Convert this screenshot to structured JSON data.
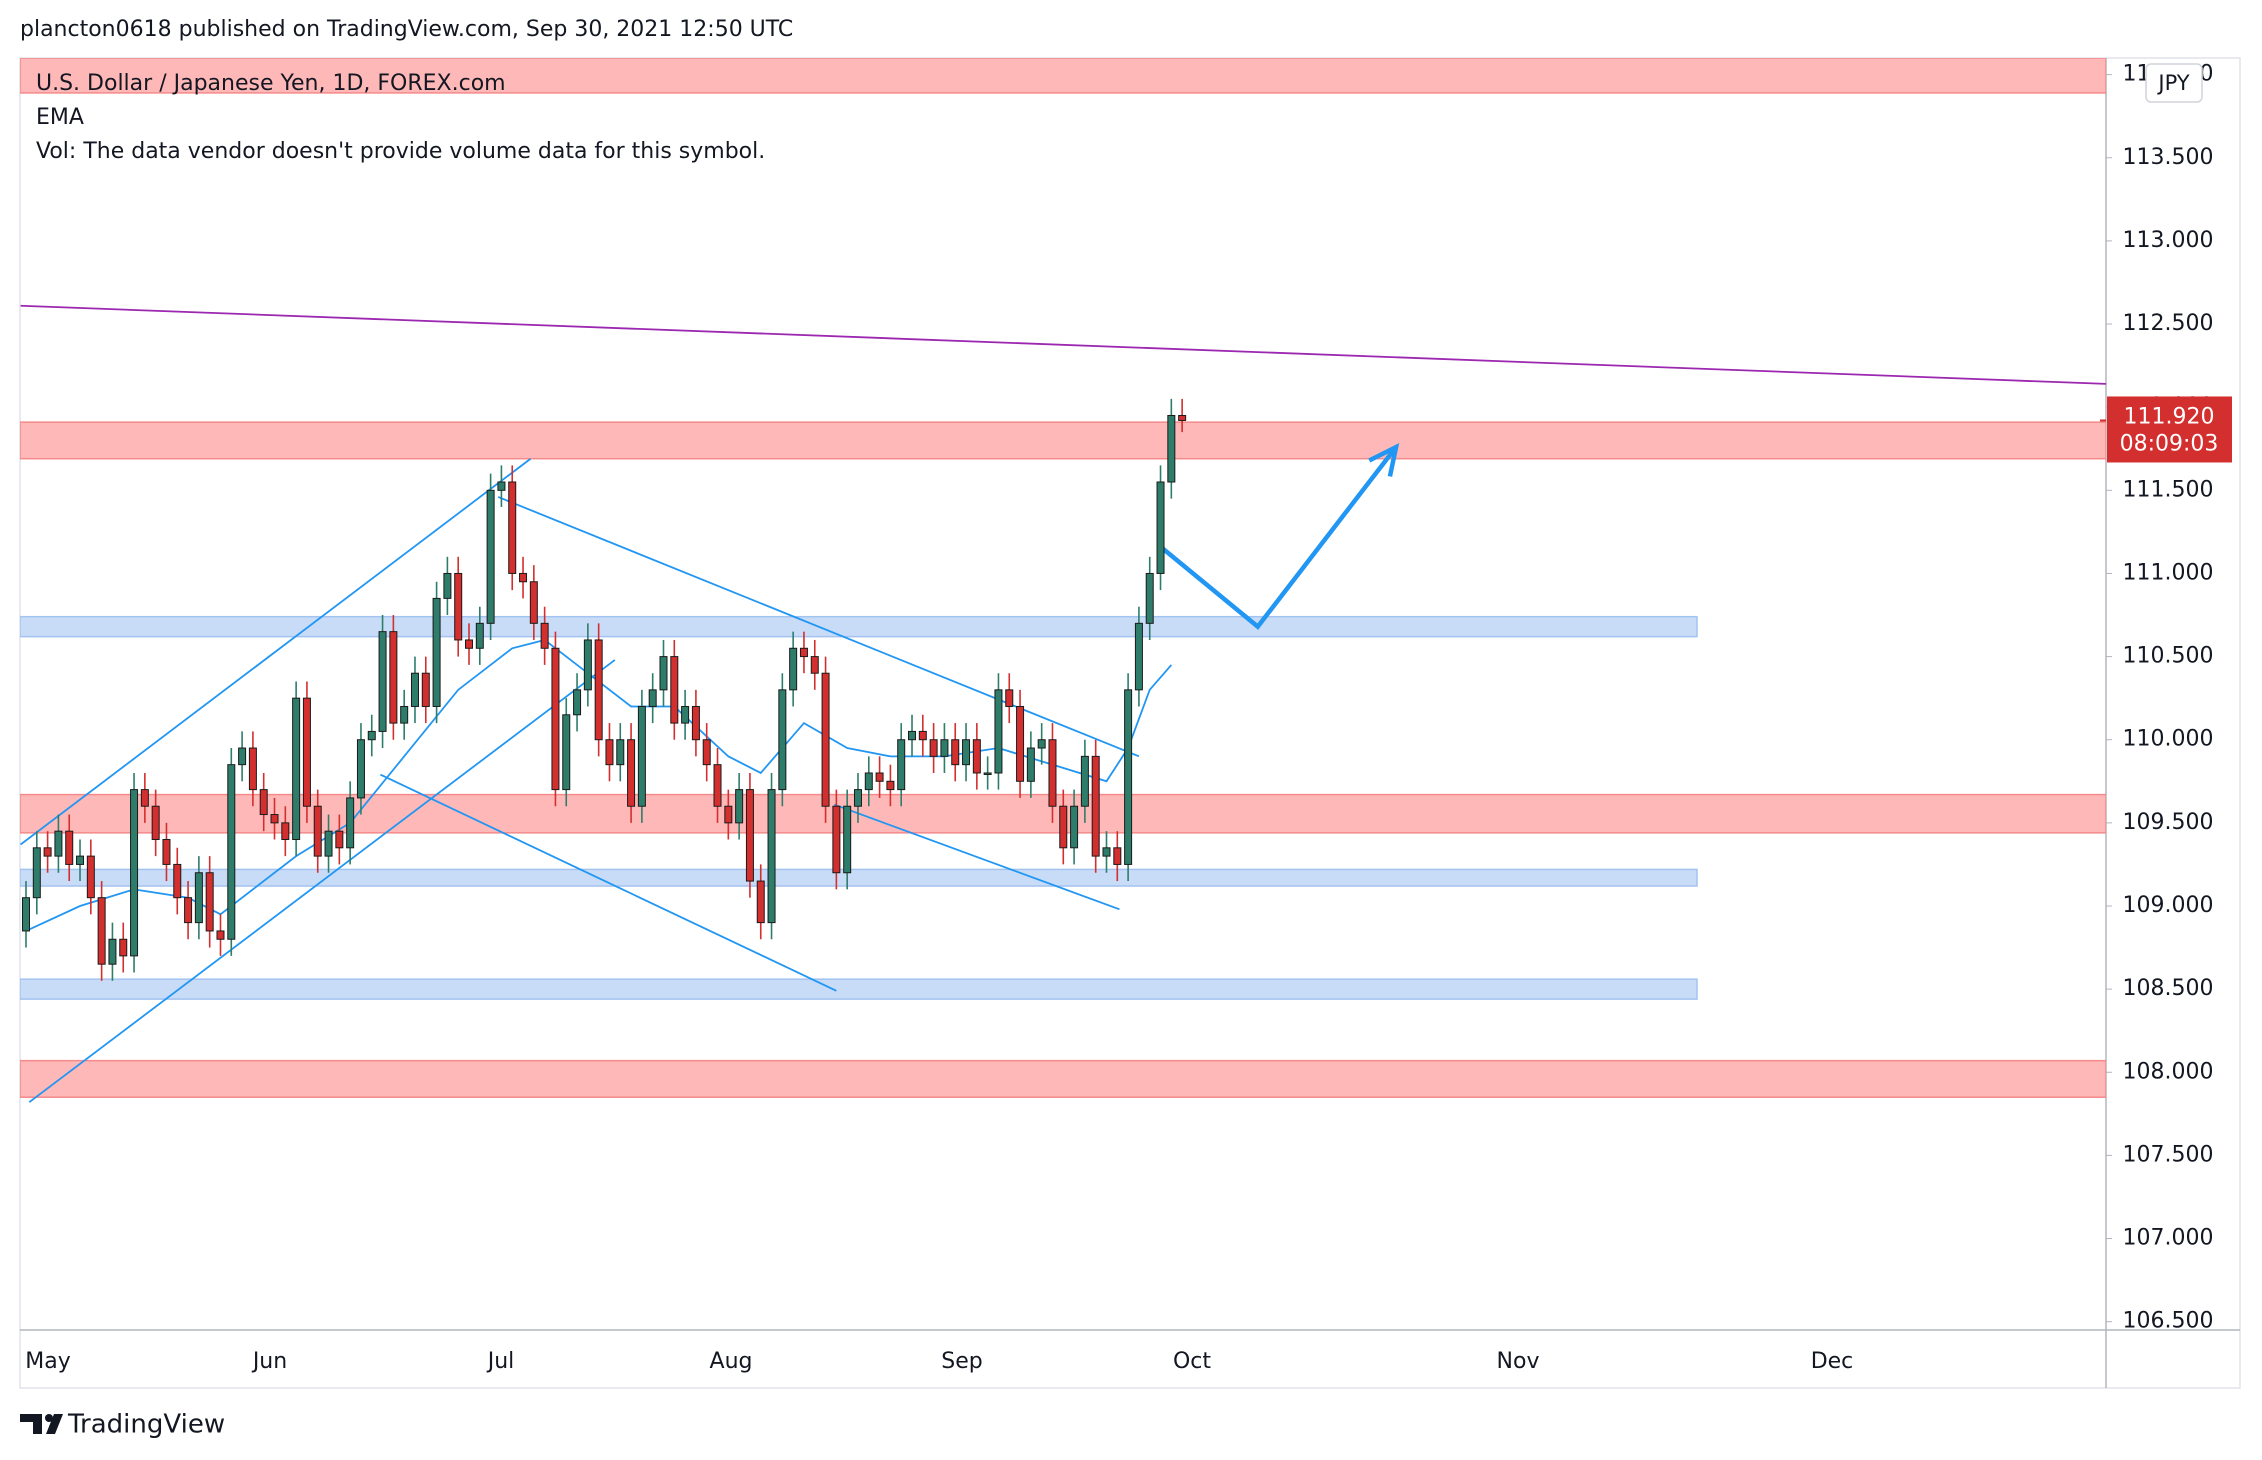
{
  "header": "plancton0618 published on TradingView.com, Sep 30, 2021 12:50 UTC",
  "footer": "TradingView",
  "chart_data": {
    "type": "candlestick",
    "title": "U.S. Dollar / Japanese Yen, 1D, FOREX.com",
    "volume_note": "Vol: The data vendor doesn't provide volume data for this symbol.",
    "currency": "JPY",
    "up_color": "#2e7d6b",
    "down_color": "#d32f2f",
    "grid": false,
    "ylim": [
      106.45,
      114.1
    ],
    "yticks": [
      {
        "value": 106.5,
        "label": "106.500"
      },
      {
        "value": 107,
        "label": "107.000"
      },
      {
        "value": 107.5,
        "label": "107.500"
      },
      {
        "value": 108,
        "label": "108.000"
      },
      {
        "value": 108.5,
        "label": "108.500"
      },
      {
        "value": 109,
        "label": "109.000"
      },
      {
        "value": 109.5,
        "label": "109.500"
      },
      {
        "value": 110,
        "label": "110.000"
      },
      {
        "value": 110.5,
        "label": "110.500"
      },
      {
        "value": 111,
        "label": "111.000"
      },
      {
        "value": 111.5,
        "label": "111.500"
      },
      {
        "value": 112,
        "label": "112.000"
      },
      {
        "value": 112.5,
        "label": "112.500"
      },
      {
        "value": 113,
        "label": "113.000"
      },
      {
        "value": 113.5,
        "label": "113.500"
      },
      {
        "value": 114,
        "label": "114.000"
      }
    ],
    "xticks": [
      "May",
      "Jun",
      "Jul",
      "Aug",
      "Sep",
      "Oct",
      "Nov",
      "Dec"
    ],
    "current_price": {
      "value": 111.92,
      "label": "111.920",
      "countdown": "08:09:03",
      "color": "#d32f2f"
    },
    "open": [
      108.85,
      109.05,
      109.35,
      109.3,
      109.45,
      109.25,
      109.3,
      109.05,
      108.65,
      108.8,
      108.7,
      109.7,
      109.6,
      109.4,
      109.25,
      109.05,
      108.9,
      109.2,
      108.85,
      108.8,
      109.85,
      109.95,
      109.7,
      109.55,
      109.5,
      109.4,
      110.25,
      109.6,
      109.3,
      109.45,
      109.35,
      109.65,
      110.0,
      110.05,
      110.65,
      110.1,
      110.2,
      110.4,
      110.2,
      110.85,
      111.0,
      110.6,
      110.55,
      110.7,
      111.5,
      111.55,
      111.0,
      110.95,
      110.7,
      110.55,
      109.7,
      110.15,
      110.3,
      110.6,
      110.0,
      109.85,
      110.0,
      109.6,
      110.2,
      110.3,
      110.5,
      110.1,
      110.2,
      110.0,
      109.85,
      109.6,
      109.5,
      109.7,
      109.15,
      108.9,
      109.7,
      110.3,
      110.55,
      110.5,
      110.4,
      109.6,
      109.2,
      109.6,
      109.7,
      109.8,
      109.75,
      109.7,
      110.0,
      110.05,
      110.0,
      109.9,
      110.0,
      109.85,
      110.0,
      109.8,
      109.8,
      110.3,
      110.2,
      109.75,
      109.95,
      110.0,
      109.6,
      109.35,
      109.6,
      109.9,
      109.3,
      109.35,
      109.25,
      110.3,
      110.7,
      111.0,
      111.55,
      111.95
    ],
    "high": [
      109.15,
      109.45,
      109.45,
      109.55,
      109.55,
      109.4,
      109.4,
      109.15,
      108.9,
      108.9,
      109.8,
      109.8,
      109.7,
      109.5,
      109.35,
      109.15,
      109.3,
      109.3,
      108.95,
      109.95,
      110.05,
      110.05,
      109.8,
      109.65,
      109.6,
      110.35,
      110.35,
      109.7,
      109.55,
      109.55,
      109.75,
      110.1,
      110.15,
      110.75,
      110.75,
      110.3,
      110.5,
      110.5,
      110.95,
      111.1,
      111.1,
      110.7,
      110.8,
      111.6,
      111.65,
      111.65,
      111.1,
      111.05,
      110.8,
      110.65,
      110.25,
      110.4,
      110.7,
      110.7,
      110.1,
      110.1,
      110.1,
      110.3,
      110.4,
      110.6,
      110.6,
      110.3,
      110.3,
      110.1,
      109.95,
      109.7,
      109.8,
      109.8,
      109.25,
      109.8,
      110.4,
      110.65,
      110.65,
      110.6,
      110.5,
      109.7,
      109.7,
      109.8,
      109.9,
      109.9,
      109.85,
      110.1,
      110.15,
      110.15,
      110.1,
      110.1,
      110.1,
      110.1,
      110.1,
      109.9,
      110.4,
      110.4,
      110.3,
      110.05,
      110.1,
      110.1,
      109.7,
      109.7,
      110.0,
      110.0,
      109.45,
      109.45,
      110.4,
      110.8,
      111.1,
      111.65,
      112.05,
      112.05
    ],
    "low": [
      108.75,
      108.95,
      109.2,
      109.2,
      109.15,
      109.15,
      108.95,
      108.55,
      108.55,
      108.6,
      108.6,
      109.5,
      109.3,
      109.15,
      108.95,
      108.8,
      108.8,
      108.75,
      108.7,
      108.7,
      109.75,
      109.6,
      109.45,
      109.4,
      109.3,
      109.3,
      109.5,
      109.2,
      109.2,
      109.25,
      109.25,
      109.55,
      109.9,
      109.95,
      110.0,
      110.0,
      110.1,
      110.1,
      110.1,
      110.75,
      110.5,
      110.45,
      110.45,
      110.6,
      111.4,
      110.9,
      110.85,
      110.6,
      110.45,
      109.6,
      109.6,
      110.05,
      110.2,
      109.9,
      109.75,
      109.75,
      109.5,
      109.5,
      110.1,
      110.2,
      110.0,
      110.0,
      109.9,
      109.75,
      109.5,
      109.4,
      109.4,
      109.05,
      108.8,
      108.8,
      109.6,
      110.2,
      110.4,
      110.3,
      109.5,
      109.1,
      109.1,
      109.5,
      109.6,
      109.65,
      109.6,
      109.6,
      109.9,
      109.9,
      109.8,
      109.8,
      109.75,
      109.75,
      109.7,
      109.7,
      109.7,
      110.1,
      109.65,
      109.65,
      109.85,
      109.5,
      109.25,
      109.25,
      109.5,
      109.2,
      109.2,
      109.15,
      109.15,
      110.2,
      110.6,
      110.9,
      111.45,
      111.85
    ],
    "close": [
      109.05,
      109.35,
      109.3,
      109.45,
      109.25,
      109.3,
      109.05,
      108.65,
      108.8,
      108.7,
      109.7,
      109.6,
      109.4,
      109.25,
      109.05,
      108.9,
      109.2,
      108.85,
      108.8,
      109.85,
      109.95,
      109.7,
      109.55,
      109.5,
      109.4,
      110.25,
      109.6,
      109.3,
      109.45,
      109.35,
      109.65,
      110.0,
      110.05,
      110.65,
      110.1,
      110.2,
      110.4,
      110.2,
      110.85,
      111.0,
      110.6,
      110.55,
      110.7,
      111.5,
      111.55,
      111.0,
      110.95,
      110.7,
      110.55,
      109.7,
      110.15,
      110.3,
      110.6,
      110.0,
      109.85,
      110.0,
      109.6,
      110.2,
      110.3,
      110.5,
      110.1,
      110.2,
      110.0,
      109.85,
      109.6,
      109.5,
      109.7,
      109.15,
      108.9,
      109.7,
      110.3,
      110.55,
      110.5,
      110.4,
      109.6,
      109.2,
      109.6,
      109.7,
      109.8,
      109.75,
      109.7,
      110.0,
      110.05,
      110.0,
      109.9,
      110.0,
      109.85,
      110.0,
      109.8,
      109.8,
      110.3,
      110.2,
      109.75,
      109.95,
      110.0,
      109.6,
      109.35,
      109.6,
      109.9,
      109.3,
      109.35,
      109.25,
      110.3,
      110.7,
      111.0,
      111.55,
      111.95,
      111.92
    ],
    "ema": {
      "name": "EMA",
      "color": "#2196f3",
      "x": [
        0,
        5,
        10,
        15,
        18,
        25,
        30,
        35,
        40,
        45,
        48,
        52,
        56,
        60,
        65,
        68,
        72,
        76,
        80,
        85,
        90,
        95,
        100,
        102,
        104,
        106
      ],
      "values": [
        108.85,
        109.0,
        109.1,
        109.05,
        108.95,
        109.3,
        109.5,
        109.9,
        110.3,
        110.55,
        110.6,
        110.4,
        110.2,
        110.2,
        109.9,
        109.8,
        110.1,
        109.95,
        109.9,
        109.9,
        109.95,
        109.85,
        109.75,
        109.95,
        110.3,
        110.45
      ]
    },
    "zones": [
      {
        "color": "#ffb8b8",
        "border": "#f48a8a",
        "extent": "full",
        "bottom": 113.89,
        "top": 114.1
      },
      {
        "color": "#ffb8b8",
        "border": "#f48a8a",
        "extent": "full",
        "bottom": 111.69,
        "top": 111.91
      },
      {
        "color": "#c8dcf8",
        "border": "#a3c3f0",
        "extent": "partial",
        "bottom": 110.62,
        "top": 110.74
      },
      {
        "color": "#ffb8b8",
        "border": "#f48a8a",
        "extent": "full",
        "bottom": 109.44,
        "top": 109.67
      },
      {
        "color": "#c8dcf8",
        "border": "#a3c3f0",
        "extent": "partial",
        "bottom": 109.12,
        "top": 109.22
      },
      {
        "color": "#c8dcf8",
        "border": "#a3c3f0",
        "extent": "partial",
        "bottom": 108.44,
        "top": 108.56
      },
      {
        "color": "#ffb8b8",
        "border": "#f48a8a",
        "extent": "full",
        "bottom": 107.85,
        "top": 108.07
      }
    ],
    "lines": [
      {
        "color": "#9c27b0",
        "x": [
          -0.5,
          192.5
        ],
        "values": [
          112.61,
          112.14
        ]
      },
      {
        "color": "#2196f3",
        "x": [
          -0.5,
          46.7
        ],
        "values": [
          109.37,
          111.69
        ]
      },
      {
        "color": "#2196f3",
        "x": [
          0.3,
          54.5
        ],
        "values": [
          107.82,
          110.48
        ]
      },
      {
        "color": "#2196f3",
        "x": [
          43.7,
          103
        ],
        "values": [
          111.46,
          109.9
        ]
      },
      {
        "color": "#2196f3",
        "x": [
          32.8,
          75
        ],
        "values": [
          109.79,
          108.49
        ]
      },
      {
        "color": "#2196f3",
        "x": [
          74.8,
          101.2
        ],
        "values": [
          109.61,
          108.98
        ]
      },
      {
        "color": "#2196f3",
        "x": [
          105.2,
          114,
          126.8
        ],
        "values": [
          111.15,
          110.68,
          111.76
        ],
        "arrow": true
      }
    ]
  }
}
